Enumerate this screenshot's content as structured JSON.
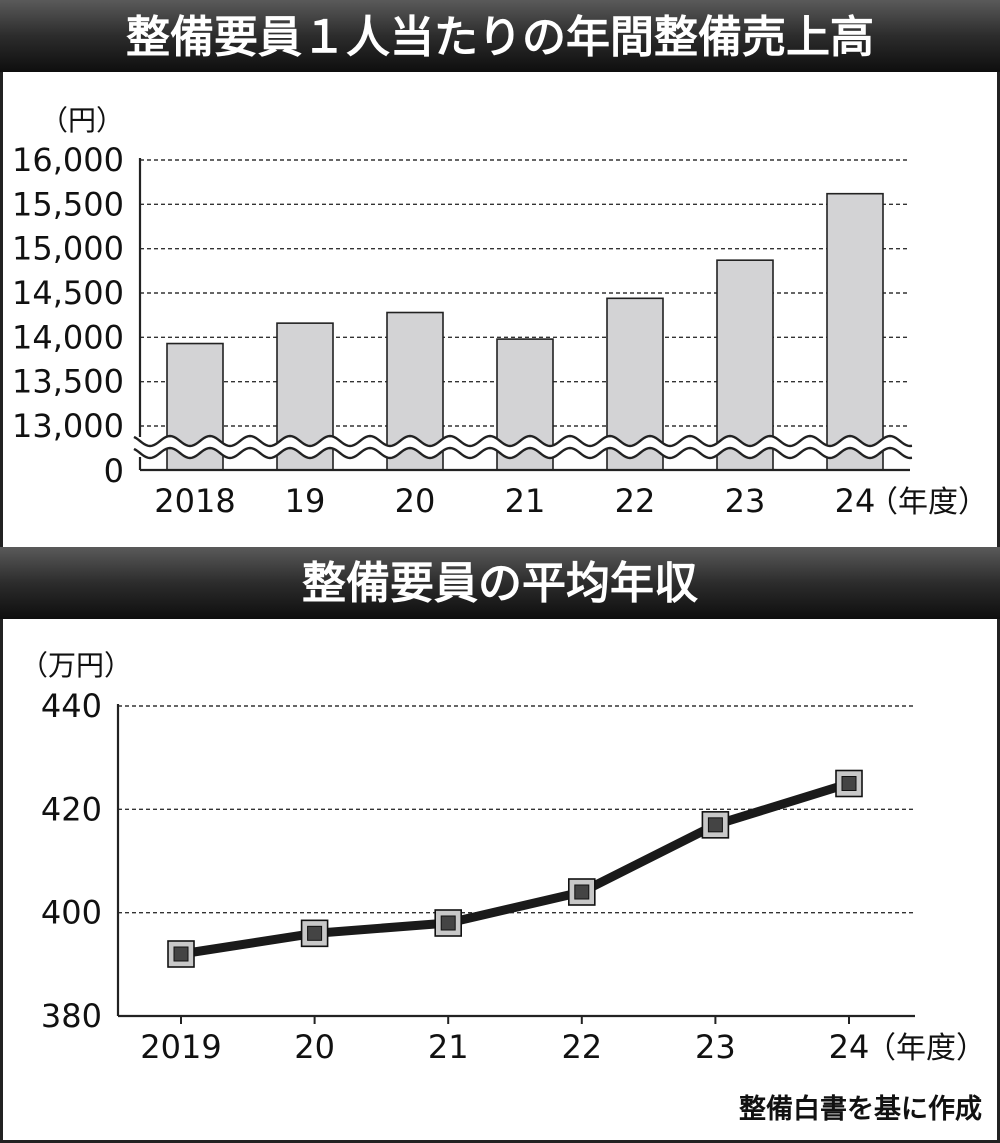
{
  "chart_data": [
    {
      "type": "bar",
      "title": "整備要員１人当たりの年間整備売上高",
      "y_unit": "（円）",
      "x_unit": "（年度）",
      "categories": [
        "2018",
        "19",
        "20",
        "21",
        "22",
        "23",
        "24"
      ],
      "values": [
        13930,
        14160,
        14280,
        13980,
        14440,
        14870,
        15620
      ],
      "ylim": [
        13000,
        16000
      ],
      "yticks": [
        16000,
        15500,
        15000,
        14500,
        14000,
        13500,
        13000
      ],
      "ytick_labels": [
        "16,000",
        "15,500",
        "15,000",
        "14,500",
        "14,000",
        "13,500",
        "13,000"
      ],
      "axis_break_label": "0",
      "axis_break": true,
      "grid": "dashed-horizontal",
      "bar_color": "#d3d3d5"
    },
    {
      "type": "line",
      "title": "整備要員の平均年収",
      "y_unit": "（万円）",
      "x_unit": "（年度）",
      "categories": [
        "2019",
        "20",
        "21",
        "22",
        "23",
        "24"
      ],
      "values": [
        392,
        396,
        398,
        404,
        417,
        425
      ],
      "ylim": [
        380,
        440
      ],
      "yticks": [
        440,
        420,
        400,
        380
      ],
      "ytick_labels": [
        "440",
        "420",
        "400",
        "380"
      ],
      "grid": "dashed-horizontal",
      "line_color": "#1a1a1a",
      "marker_fill": "#444444",
      "marker_outline": "#c8c8c8"
    }
  ],
  "source_note": "整備白書を基に作成"
}
